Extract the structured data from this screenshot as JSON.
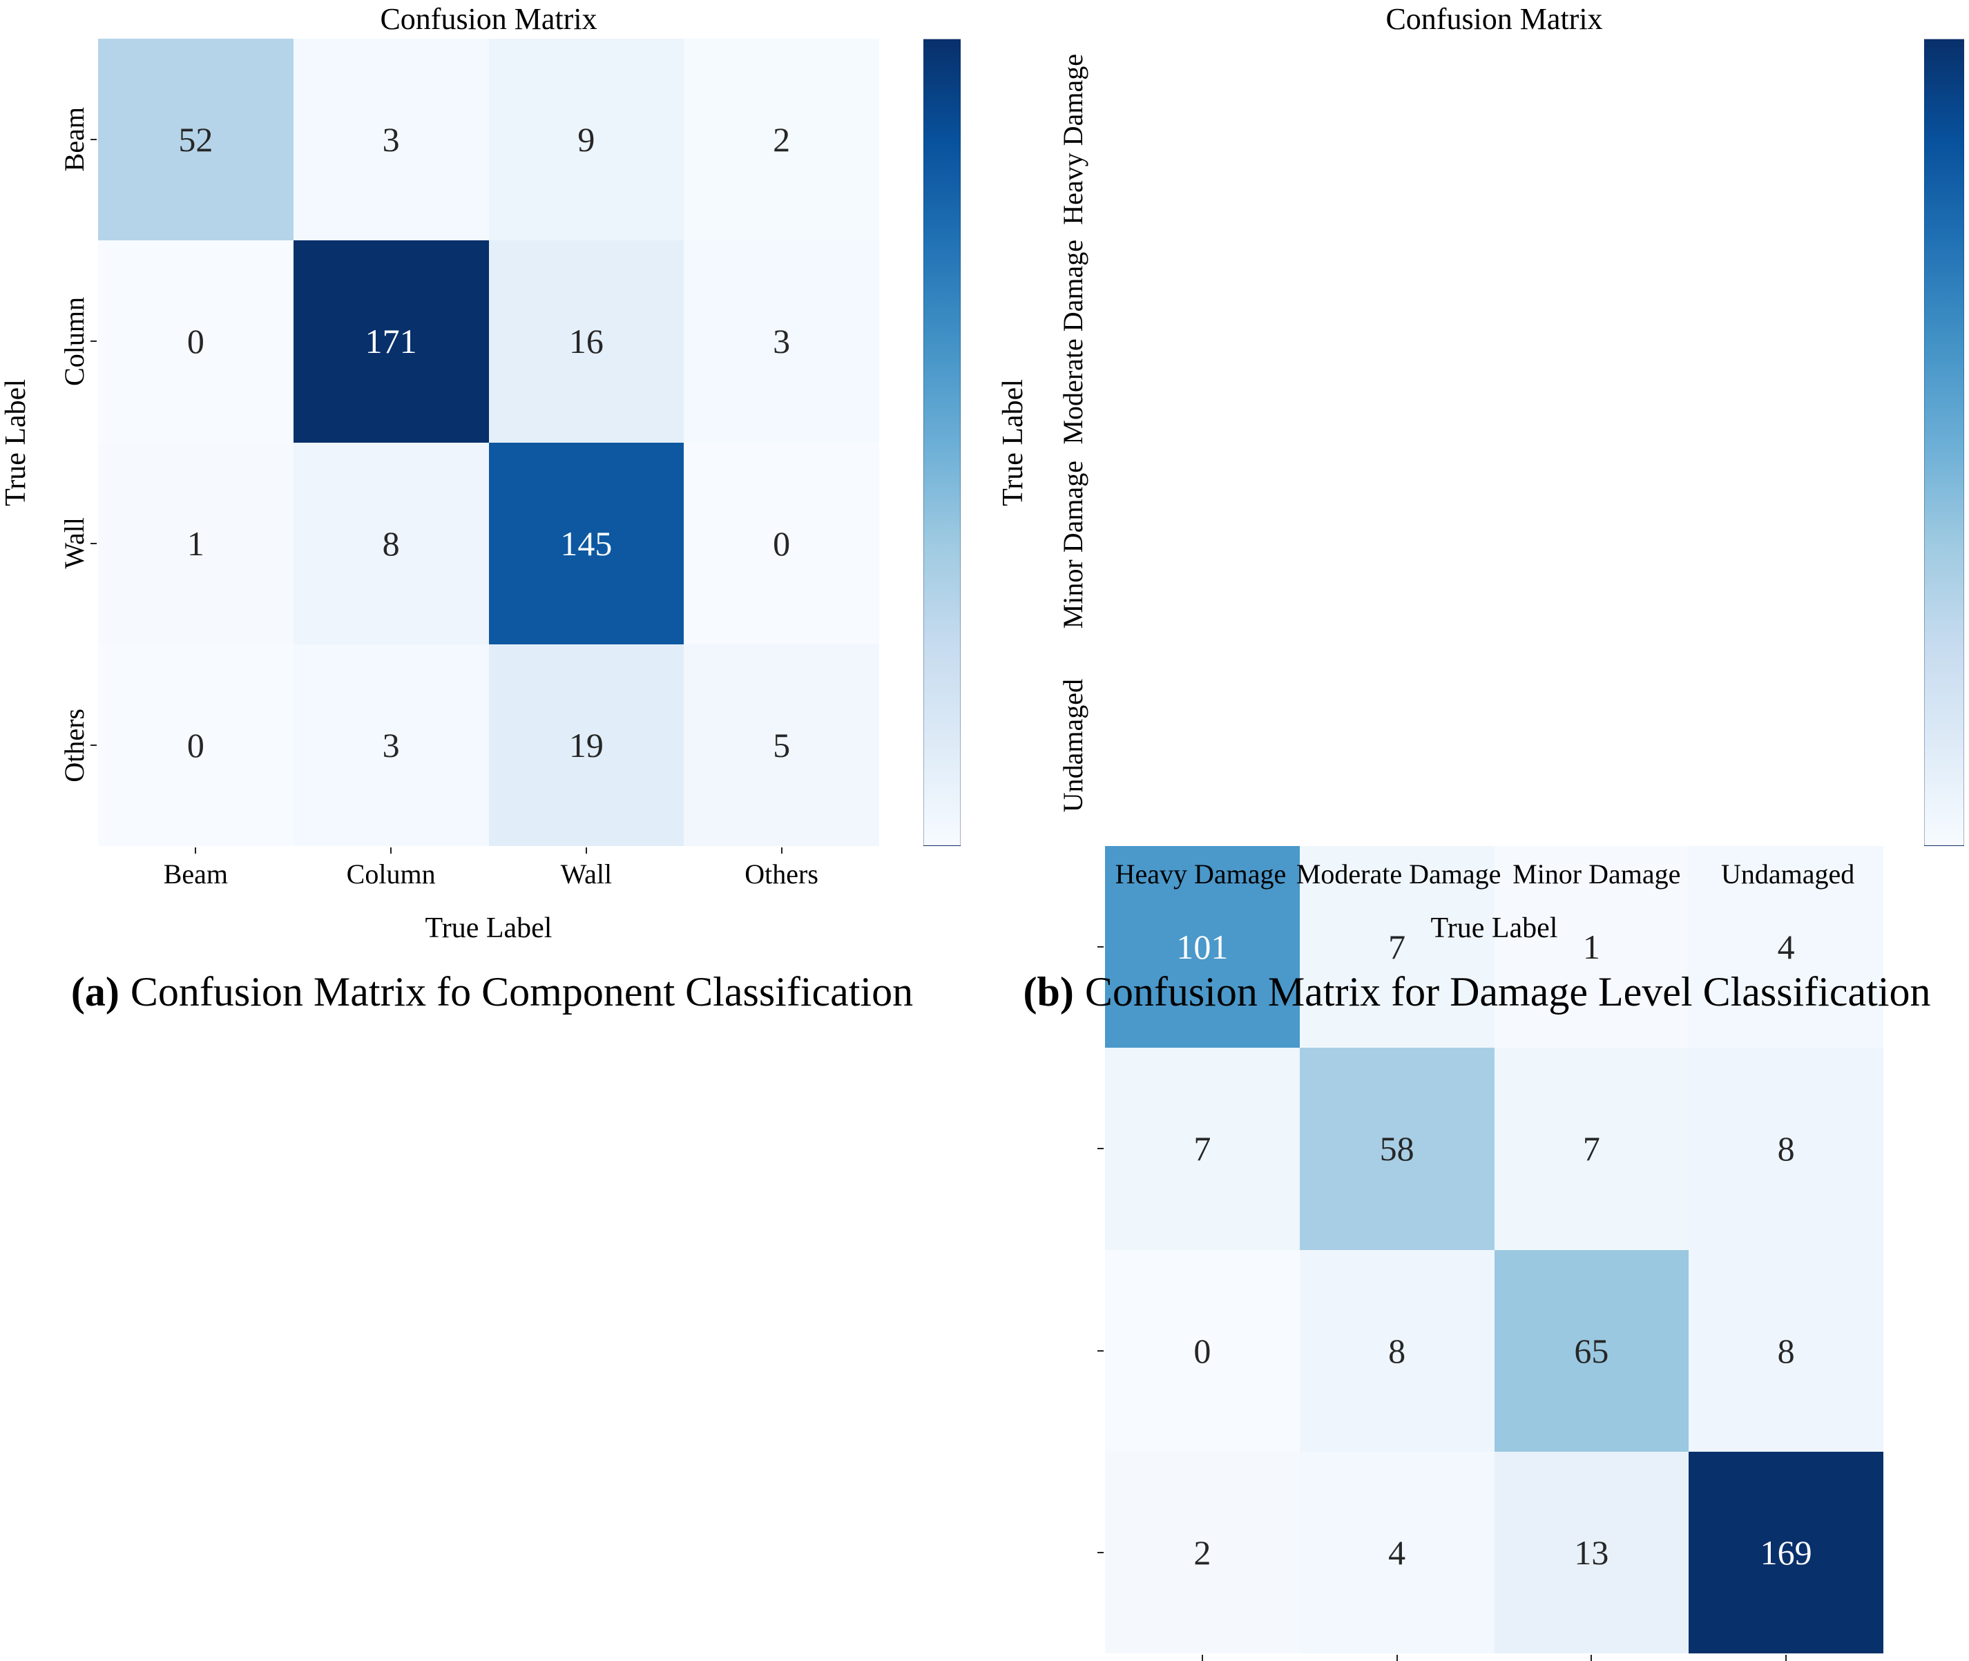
{
  "colors": {
    "colormap_low": "#f7fbff",
    "colormap_high": "#08306b",
    "cell_text_dark": "#262626",
    "cell_text_light": "#ffffff",
    "axis_text": "#000000"
  },
  "chart_data": [
    {
      "type": "heatmap",
      "title": "Confusion Matrix",
      "xlabel": "True Label",
      "ylabel": "True Label",
      "x_tick_labels": [
        "Beam",
        "Column",
        "Wall",
        "Others"
      ],
      "y_tick_labels": [
        "Beam",
        "Column",
        "Wall",
        "Others"
      ],
      "values": [
        [
          52,
          3,
          9,
          2
        ],
        [
          0,
          171,
          16,
          3
        ],
        [
          1,
          8,
          145,
          0
        ],
        [
          0,
          3,
          19,
          5
        ]
      ],
      "vmin": 0,
      "vmax": 171,
      "colormap": "Blues",
      "colorbar_position": "right",
      "colorbar_tick_labels": "none",
      "grid": "off",
      "caption_marker": "(a)",
      "caption": "Confusion Matrix fo Component Classification"
    },
    {
      "type": "heatmap",
      "title": "Confusion Matrix",
      "xlabel": "True Label",
      "ylabel": "True Label",
      "x_tick_labels": [
        "Heavy Damage",
        "Moderate Damage",
        "Minor Damage",
        "Undamaged"
      ],
      "y_tick_labels": [
        "Heavy Damage",
        "Moderate Damage",
        "Minor Damage",
        "Undamaged"
      ],
      "values": [
        [
          101,
          7,
          1,
          4
        ],
        [
          7,
          58,
          7,
          8
        ],
        [
          0,
          8,
          65,
          8
        ],
        [
          2,
          4,
          13,
          169
        ]
      ],
      "vmin": 0,
      "vmax": 169,
      "colormap": "Blues",
      "colorbar_position": "right",
      "colorbar_tick_labels": "none",
      "grid": "off",
      "caption_marker": "(b)",
      "caption": "Confusion Matrix for Damage Level Classification"
    }
  ]
}
